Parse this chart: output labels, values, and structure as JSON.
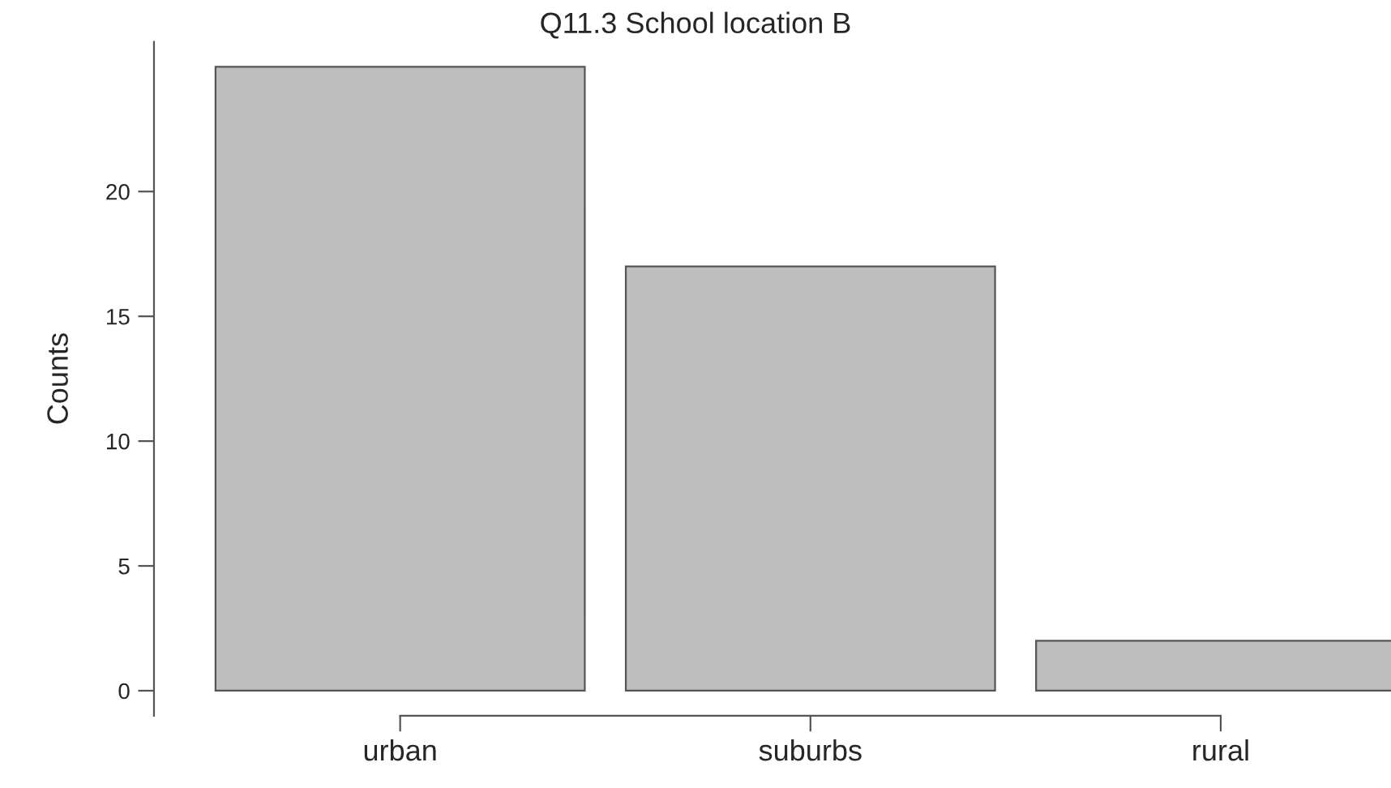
{
  "chart_data": {
    "type": "bar",
    "title": "Q11.3 School location B",
    "ylabel": "Counts",
    "categories": [
      "urban",
      "suburbs",
      "rural"
    ],
    "values": [
      25,
      17,
      2
    ],
    "color": "#bebebe",
    "ylim": [
      -1,
      26
    ],
    "yticks": [
      0,
      5,
      10,
      15,
      20
    ],
    "grid": false
  }
}
